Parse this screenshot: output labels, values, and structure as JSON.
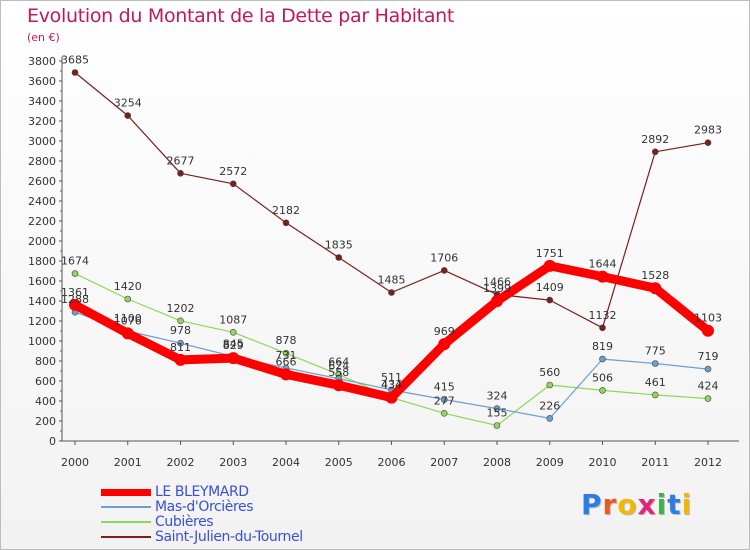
{
  "header": {
    "title": "Evolution du Montant de la Dette par Habitant",
    "subtitle": "(en €)"
  },
  "brand": {
    "text": "Proxiti",
    "letter_colors": [
      "#2e7de0",
      "#e85a24",
      "#f2b705",
      "#e0267a",
      "#3bb34a",
      "#2e7de0",
      "#f2b705"
    ]
  },
  "chart_data": {
    "type": "line",
    "title": "Evolution du Montant de la Dette par Habitant",
    "subtitle": "(en €)",
    "xlabel": "",
    "ylabel": "",
    "x": [
      "2000",
      "2001",
      "2002",
      "2003",
      "2004",
      "2005",
      "2006",
      "2007",
      "2008",
      "2009",
      "2010",
      "2011",
      "2012"
    ],
    "ylim": [
      0,
      3800
    ],
    "ytick_step": 200,
    "grid": false,
    "legend_position": "bottom-left",
    "series": [
      {
        "name": "LE BLEYMARD",
        "color": "#ff0000",
        "values": [
          1361,
          1076,
          811,
          829,
          666,
          558,
          434,
          969,
          1399,
          1751,
          1644,
          1528,
          1103
        ],
        "labels": [
          "1361",
          "1076",
          "811",
          "829",
          "666",
          "558",
          "434",
          "969",
          "1399",
          "1751",
          "1644",
          "1528",
          "1103"
        ],
        "thick": true
      },
      {
        "name": "Mas-d'Orcières",
        "color": "#6aa0d4",
        "values": [
          1288,
          1100,
          978,
          845,
          731,
          624,
          511,
          415,
          324,
          226,
          819,
          775,
          719
        ],
        "labels": [
          "1288",
          "1100",
          "978",
          "845",
          "731",
          "624",
          "511",
          "415",
          "324",
          "226",
          "819",
          "775",
          "719"
        ]
      },
      {
        "name": "Cubières",
        "color": "#8fd65a",
        "values": [
          1674,
          1420,
          1202,
          1087,
          878,
          664,
          434,
          277,
          155,
          560,
          506,
          461,
          424
        ],
        "labels": [
          "1674",
          "1420",
          "1202",
          "1087",
          "878",
          "664",
          "434",
          "277",
          "155",
          "560",
          "506",
          "461",
          "424"
        ]
      },
      {
        "name": "Saint-Julien-du-Tournel",
        "color": "#7a1e1e",
        "values": [
          3685,
          3254,
          2677,
          2572,
          2182,
          1835,
          1485,
          1706,
          1466,
          1409,
          1132,
          2892,
          2983
        ],
        "labels": [
          "3685",
          "3254",
          "2677",
          "2572",
          "2182",
          "1835",
          "1485",
          "1706",
          "1466",
          "1409",
          "1132",
          "2892",
          "2983"
        ]
      }
    ]
  }
}
